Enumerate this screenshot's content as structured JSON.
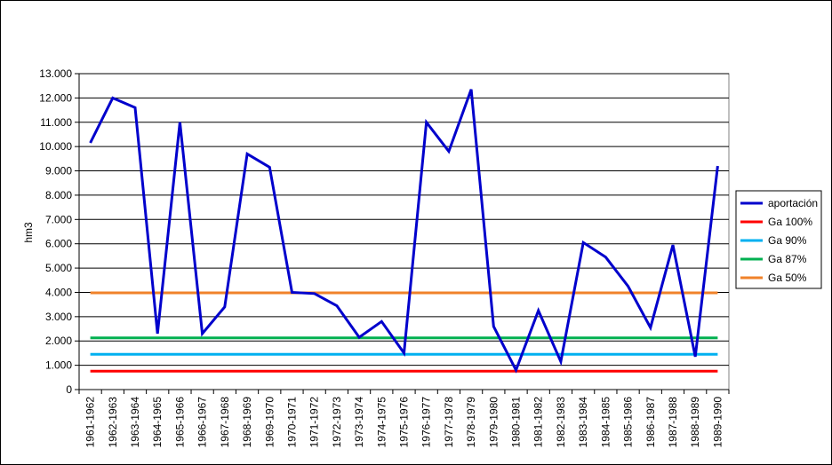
{
  "chart_data": {
    "type": "line",
    "title": "",
    "xlabel": "",
    "ylabel": "hm3",
    "ylim": [
      0,
      13000
    ],
    "yticks": [
      "0",
      "1.000",
      "2.000",
      "3.000",
      "4.000",
      "5.000",
      "6.000",
      "7.000",
      "8.000",
      "9.000",
      "10.000",
      "11.000",
      "12.000",
      "13.000"
    ],
    "grid": "horizontal",
    "legend_position": "right",
    "categories": [
      "1961-1962",
      "1962-1963",
      "1963-1964",
      "1964-1965",
      "1965-1966",
      "1966-1967",
      "1967-1968",
      "1968-1969",
      "1969-1970",
      "1970-1971",
      "1971-1972",
      "1972-1973",
      "1973-1974",
      "1974-1975",
      "1975-1976",
      "1976-1977",
      "1977-1978",
      "1978-1979",
      "1979-1980",
      "1980-1981",
      "1981-1982",
      "1982-1983",
      "1983-1984",
      "1984-1985",
      "1985-1986",
      "1986-1987",
      "1987-1988",
      "1988-1989",
      "1989-1990"
    ],
    "series": [
      {
        "name": "aportación",
        "color": "#0000CC",
        "values": [
          10150,
          12000,
          11600,
          2300,
          11000,
          2300,
          3400,
          9700,
          9150,
          4000,
          3950,
          3450,
          2150,
          2800,
          1500,
          11000,
          9800,
          12350,
          2600,
          800,
          3250,
          1150,
          6050,
          5450,
          4250,
          2550,
          5950,
          1350,
          9200
        ]
      },
      {
        "name": "Ga 100%",
        "color": "#FF0000",
        "constant": 760
      },
      {
        "name": "Ga 90%",
        "color": "#00B0F0",
        "constant": 1450
      },
      {
        "name": "Ga 87%",
        "color": "#00B050",
        "constant": 2130
      },
      {
        "name": "Ga 50%",
        "color": "#F0822A",
        "constant": 3980
      }
    ]
  }
}
